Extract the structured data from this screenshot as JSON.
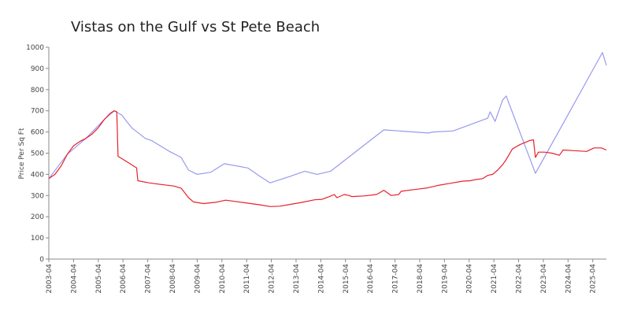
{
  "chart_data": {
    "type": "line",
    "title": "Vistas on the Gulf vs St Pete Beach",
    "y_label": "Price Per Sq Ft",
    "xlim": [
      2003.25,
      2025.8
    ],
    "ylim": [
      0,
      1000
    ],
    "yticks": [
      0,
      100,
      200,
      300,
      400,
      500,
      600,
      700,
      800,
      900,
      1000
    ],
    "xticks": [
      {
        "value": 2003.25,
        "label": "2003-04"
      },
      {
        "value": 2004.25,
        "label": "2004-04"
      },
      {
        "value": 2005.25,
        "label": "2005-04"
      },
      {
        "value": 2006.25,
        "label": "2006-04"
      },
      {
        "value": 2007.25,
        "label": "2007-04"
      },
      {
        "value": 2008.25,
        "label": "2008-04"
      },
      {
        "value": 2009.25,
        "label": "2009-04"
      },
      {
        "value": 2010.25,
        "label": "2010-04"
      },
      {
        "value": 2011.25,
        "label": "2011-04"
      },
      {
        "value": 2012.25,
        "label": "2012-04"
      },
      {
        "value": 2013.25,
        "label": "2013-04"
      },
      {
        "value": 2014.25,
        "label": "2014-04"
      },
      {
        "value": 2015.25,
        "label": "2015-04"
      },
      {
        "value": 2016.25,
        "label": "2016-04"
      },
      {
        "value": 2017.25,
        "label": "2017-04"
      },
      {
        "value": 2018.25,
        "label": "2018-04"
      },
      {
        "value": 2019.25,
        "label": "2019-04"
      },
      {
        "value": 2020.25,
        "label": "2020-04"
      },
      {
        "value": 2021.25,
        "label": "2021-04"
      },
      {
        "value": 2022.25,
        "label": "2022-04"
      },
      {
        "value": 2023.25,
        "label": "2023-04"
      },
      {
        "value": 2024.25,
        "label": "2024-04"
      },
      {
        "value": 2025.25,
        "label": "2025-04"
      }
    ],
    "series": [
      {
        "color": "#9999ee",
        "x": [
          2003.25,
          2004.0,
          2004.75,
          2005.5,
          2005.9,
          2006.2,
          2006.6,
          2007.15,
          2007.4,
          2008.1,
          2008.6,
          2008.9,
          2009.25,
          2009.8,
          2010.35,
          2011.3,
          2011.8,
          2012.2,
          2013.0,
          2013.6,
          2014.1,
          2014.65,
          2016.8,
          2018.6,
          2018.8,
          2019.6,
          2021.0,
          2021.1,
          2021.3,
          2021.6,
          2021.75,
          2022.93,
          2024.05,
          2025.64,
          2025.8
        ],
        "values": [
          380,
          495,
          570,
          660,
          700,
          680,
          620,
          570,
          560,
          510,
          480,
          420,
          400,
          410,
          450,
          430,
          390,
          360,
          390,
          415,
          400,
          415,
          610,
          595,
          600,
          605,
          665,
          695,
          650,
          750,
          770,
          405,
          640,
          975,
          915
        ]
      },
      {
        "color": "#e8202a",
        "x": [
          2003.25,
          2003.5,
          2003.75,
          2004.0,
          2004.25,
          2004.5,
          2004.75,
          2005.0,
          2005.25,
          2005.5,
          2005.75,
          2005.9,
          2006.0,
          2006.05,
          2006.4,
          2006.8,
          2006.85,
          2007.3,
          2007.8,
          2008.3,
          2008.6,
          2008.9,
          2009.1,
          2009.5,
          2010.0,
          2010.4,
          2010.8,
          2011.3,
          2011.8,
          2012.2,
          2012.6,
          2013.0,
          2013.5,
          2014.0,
          2014.3,
          2014.6,
          2014.8,
          2014.9,
          2015.2,
          2015.4,
          2015.5,
          2016.0,
          2016.5,
          2016.7,
          2016.8,
          2017.1,
          2017.4,
          2017.5,
          2018.0,
          2018.3,
          2018.5,
          2019.0,
          2019.5,
          2020.0,
          2020.3,
          2020.5,
          2020.8,
          2021.0,
          2021.2,
          2021.4,
          2021.6,
          2021.75,
          2022.0,
          2022.3,
          2022.7,
          2022.85,
          2022.93,
          2023.05,
          2023.3,
          2023.6,
          2023.9,
          2024.05,
          2024.5,
          2025.0,
          2025.3,
          2025.6,
          2025.8
        ],
        "values": [
          380,
          400,
          440,
          495,
          535,
          555,
          570,
          590,
          620,
          660,
          690,
          700,
          695,
          485,
          460,
          430,
          370,
          360,
          352,
          345,
          335,
          290,
          270,
          262,
          268,
          278,
          272,
          264,
          256,
          248,
          250,
          258,
          268,
          280,
          282,
          295,
          305,
          290,
          305,
          300,
          295,
          298,
          305,
          318,
          325,
          300,
          305,
          320,
          328,
          332,
          335,
          348,
          358,
          368,
          370,
          375,
          380,
          395,
          400,
          420,
          445,
          470,
          520,
          540,
          560,
          563,
          480,
          505,
          505,
          500,
          490,
          515,
          512,
          508,
          525,
          525,
          515
        ]
      }
    ]
  }
}
